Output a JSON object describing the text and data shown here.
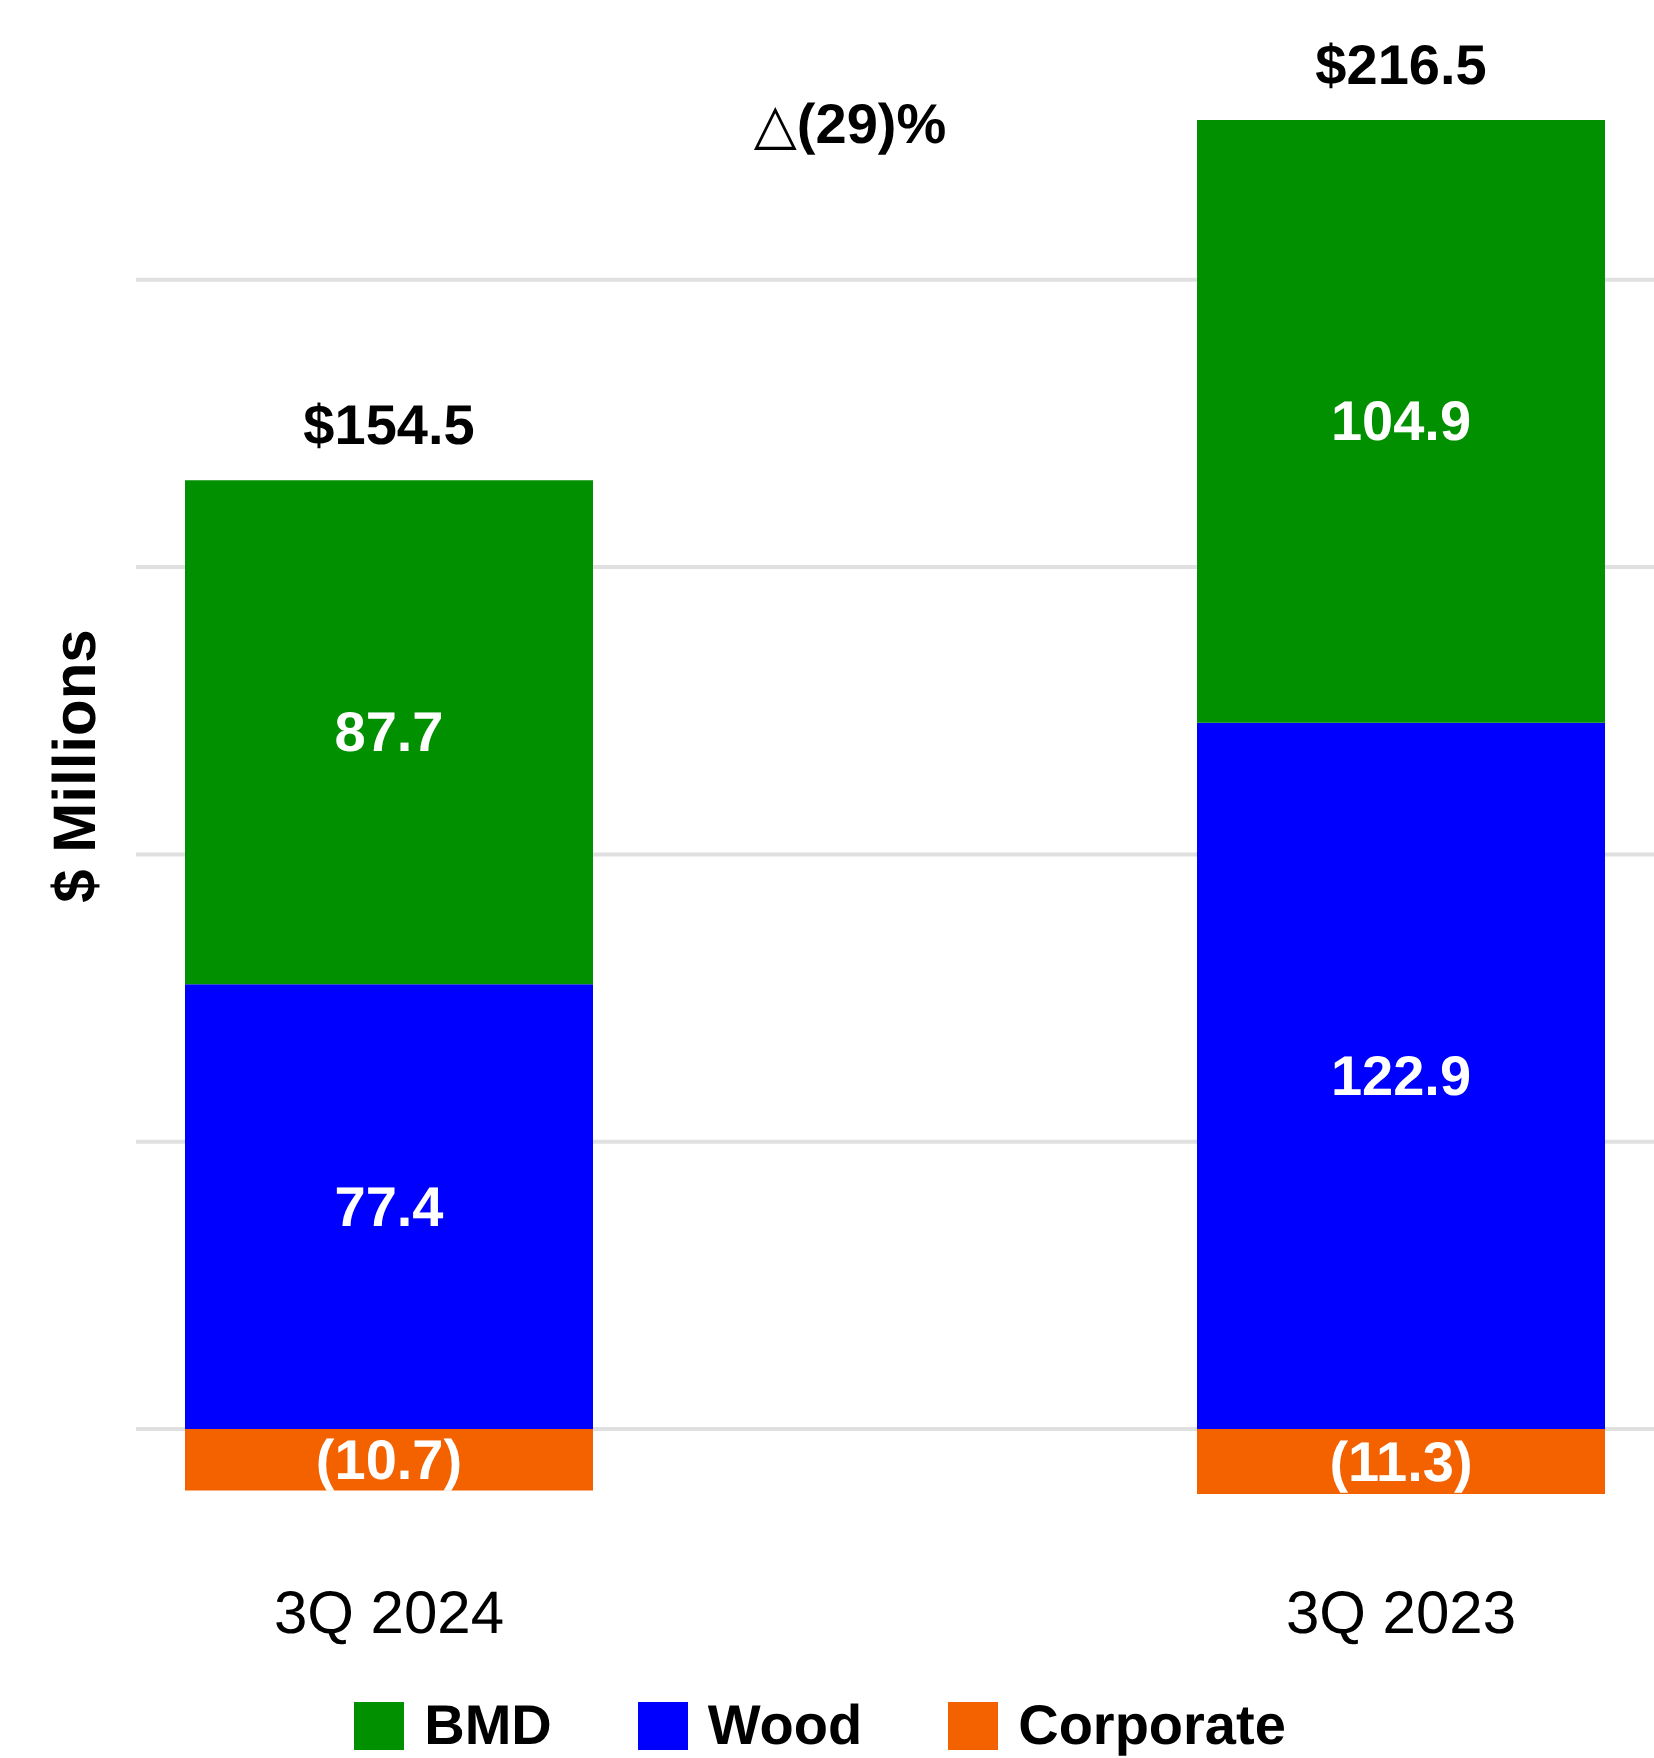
{
  "chart_data": {
    "type": "bar",
    "ylabel": "$ Millions",
    "annotations": [
      "△(29)%"
    ],
    "categories": [
      "3Q 2024",
      "3Q 2023"
    ],
    "series": [
      {
        "name": "Corporate",
        "color": "#f46200",
        "values": [
          -10.7,
          -11.3
        ],
        "value_labels": [
          "(10.7)",
          "(11.3)"
        ]
      },
      {
        "name": "Wood",
        "color": "#0000ff",
        "values": [
          77.4,
          122.9
        ],
        "value_labels": [
          "77.4",
          "122.9"
        ]
      },
      {
        "name": "BMD",
        "color": "#009000",
        "values": [
          87.7,
          104.9
        ],
        "value_labels": [
          "87.7",
          "104.9"
        ]
      }
    ],
    "stacked": true,
    "totals": [
      "$154.5",
      "$216.5"
    ],
    "yticks": [
      {
        "value": 0,
        "label": null
      },
      {
        "value": 50,
        "label": null
      },
      {
        "value": 100,
        "label": null
      },
      {
        "value": 150,
        "label": null
      },
      {
        "value": 200,
        "label": null
      }
    ],
    "grid": "y",
    "legend": "bottom",
    "tick_labels": "x"
  }
}
